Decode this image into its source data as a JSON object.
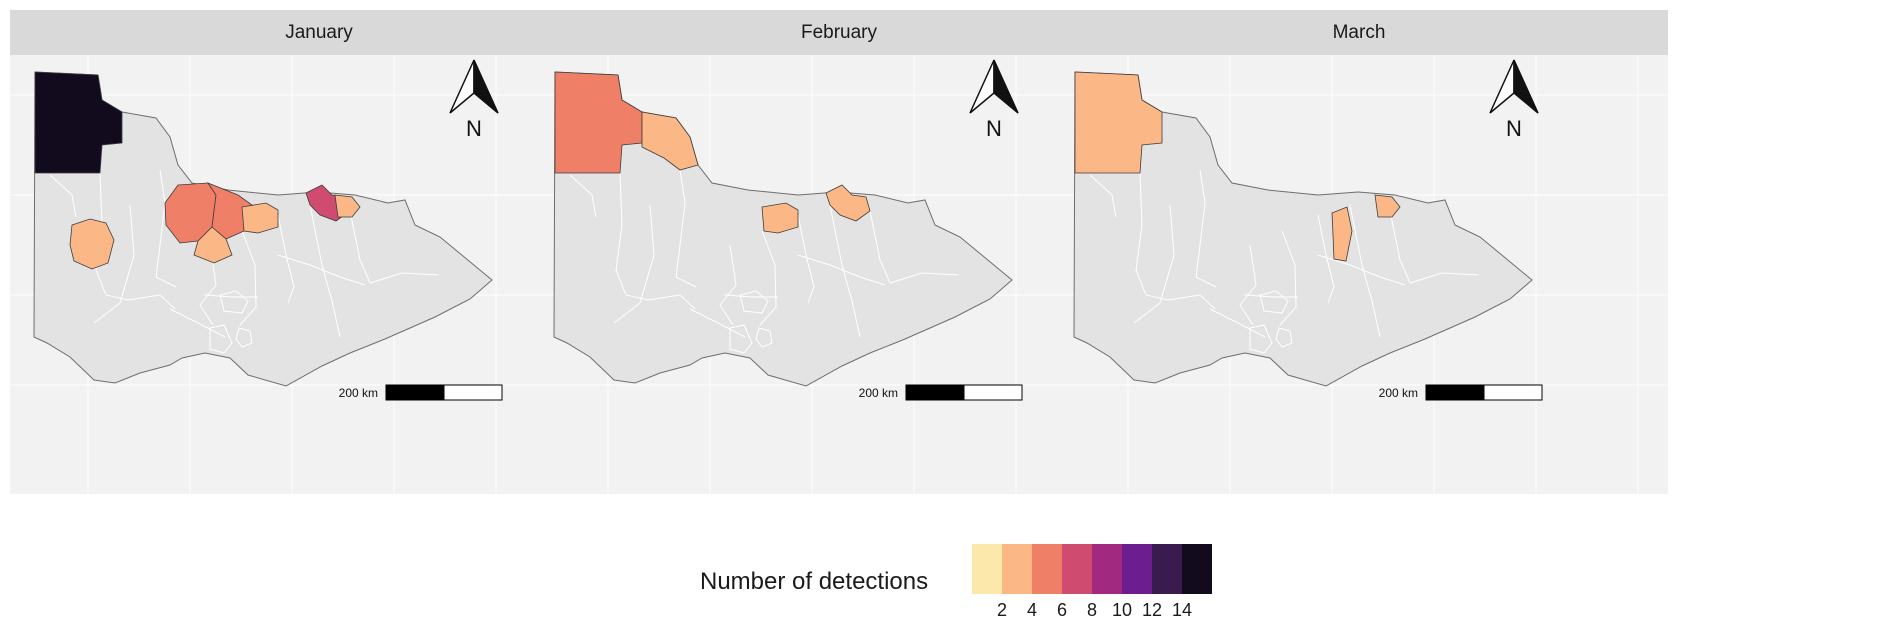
{
  "panels": [
    {
      "title": "January",
      "scale_label": "200 km",
      "north_label": "N",
      "detections": {
        "far-northwest": 14,
        "northwest-mid": 0,
        "west-small": 2,
        "center": 5,
        "center-east": 4,
        "center-south": 2,
        "east-center": 2,
        "northeast": 7,
        "northeast-small": 2,
        "murray-narrow": 0
      }
    },
    {
      "title": "February",
      "scale_label": "200 km",
      "north_label": "N",
      "detections": {
        "far-northwest": 5,
        "northwest-mid": 2,
        "west-small": 0,
        "center": 0,
        "center-east": 0,
        "center-south": 0,
        "east-center": 2,
        "northeast": 2,
        "northeast-small": 0,
        "murray-narrow": 0
      }
    },
    {
      "title": "March",
      "scale_label": "200 km",
      "north_label": "N",
      "detections": {
        "far-northwest": 2,
        "northwest-mid": 0,
        "west-small": 0,
        "center": 0,
        "center-east": 0,
        "center-south": 0,
        "east-center": 0,
        "northeast": 0,
        "northeast-small": 2,
        "murray-narrow": 2
      }
    }
  ],
  "legend": {
    "title": "Number of detections",
    "ticks": [
      "2",
      "4",
      "6",
      "8",
      "10",
      "12",
      "14"
    ],
    "colors": [
      "#fce8ab",
      "#fbb785",
      "#f07f68",
      "#cf4c70",
      "#a12a80",
      "#6c1d8f",
      "#391b4f",
      "#120b1e"
    ]
  },
  "style": {
    "no_detection_fill": "#e3e3e3",
    "panel_bg": "#f2f2f2",
    "strip_bg": "#d9d9d9"
  }
}
